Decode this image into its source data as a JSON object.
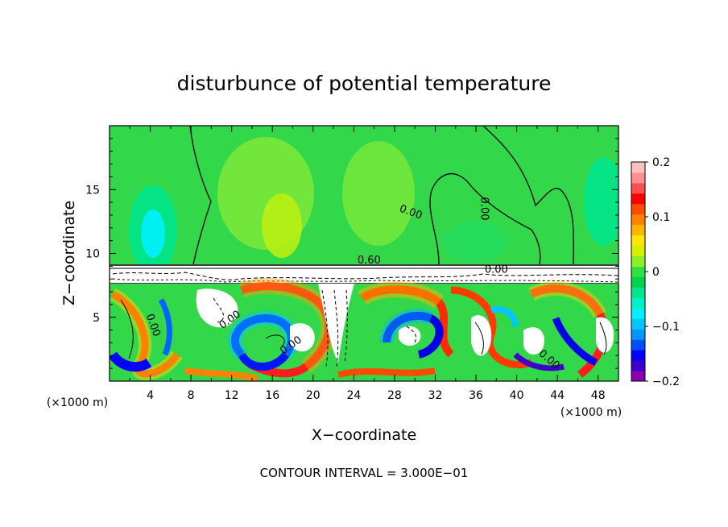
{
  "chart_data": {
    "type": "heatmap",
    "title": "disturbunce of potential temperature",
    "xlabel": "X−coordinate",
    "ylabel": "Z−coordinate",
    "x_unit": "(×1000 m)",
    "x_unit_right": "(×1000 m)",
    "xlim": [
      0,
      50
    ],
    "ylim": [
      0,
      20
    ],
    "x_ticks": [
      4,
      8,
      12,
      16,
      20,
      24,
      28,
      32,
      36,
      40,
      44,
      48
    ],
    "y_ticks": [
      5,
      10,
      15
    ],
    "colorbar": {
      "range": [
        -0.2,
        0.2
      ],
      "ticks": [
        {
          "value": 0.2,
          "label": "0.2"
        },
        {
          "value": 0.1,
          "label": "0.1"
        },
        {
          "value": 0,
          "label": "0"
        },
        {
          "value": -0.1,
          "label": "−0.1"
        },
        {
          "value": -0.2,
          "label": "−0.2"
        }
      ],
      "colors": [
        "#8a00b0",
        "#3c00c8",
        "#0000ff",
        "#0050ff",
        "#0096ff",
        "#00c8ff",
        "#00f0ff",
        "#00f0c8",
        "#00e68c",
        "#00d250",
        "#30e040",
        "#8cf028",
        "#d2f000",
        "#ffe600",
        "#ffb400",
        "#ff8200",
        "#ff4b00",
        "#ff0000",
        "#ff5050",
        "#ff9090",
        "#ffc0c0"
      ]
    },
    "contour_labels": [
      {
        "text": "0.00",
        "x": 29.5,
        "y": 13.0,
        "rot": 20
      },
      {
        "text": "0.00",
        "x": 36.5,
        "y": 13.5,
        "rot": 90
      },
      {
        "text": "0.60",
        "x": 25.5,
        "y": 9.2,
        "rot": 0
      },
      {
        "text": "0.00",
        "x": 38.0,
        "y": 8.5,
        "rot": 0
      },
      {
        "text": "0.00",
        "x": 12.0,
        "y": 4.6,
        "rot": -35
      },
      {
        "text": "0.00",
        "x": 18.0,
        "y": 2.6,
        "rot": -35
      },
      {
        "text": "0.00",
        "x": 4.0,
        "y": 4.3,
        "rot": 70
      },
      {
        "text": "0.00",
        "x": 43.0,
        "y": 1.5,
        "rot": 40
      }
    ],
    "grid": false,
    "legend": "colorbar-right"
  },
  "footer": {
    "contour_interval": "CONTOUR INTERVAL = 3.000E−01"
  }
}
